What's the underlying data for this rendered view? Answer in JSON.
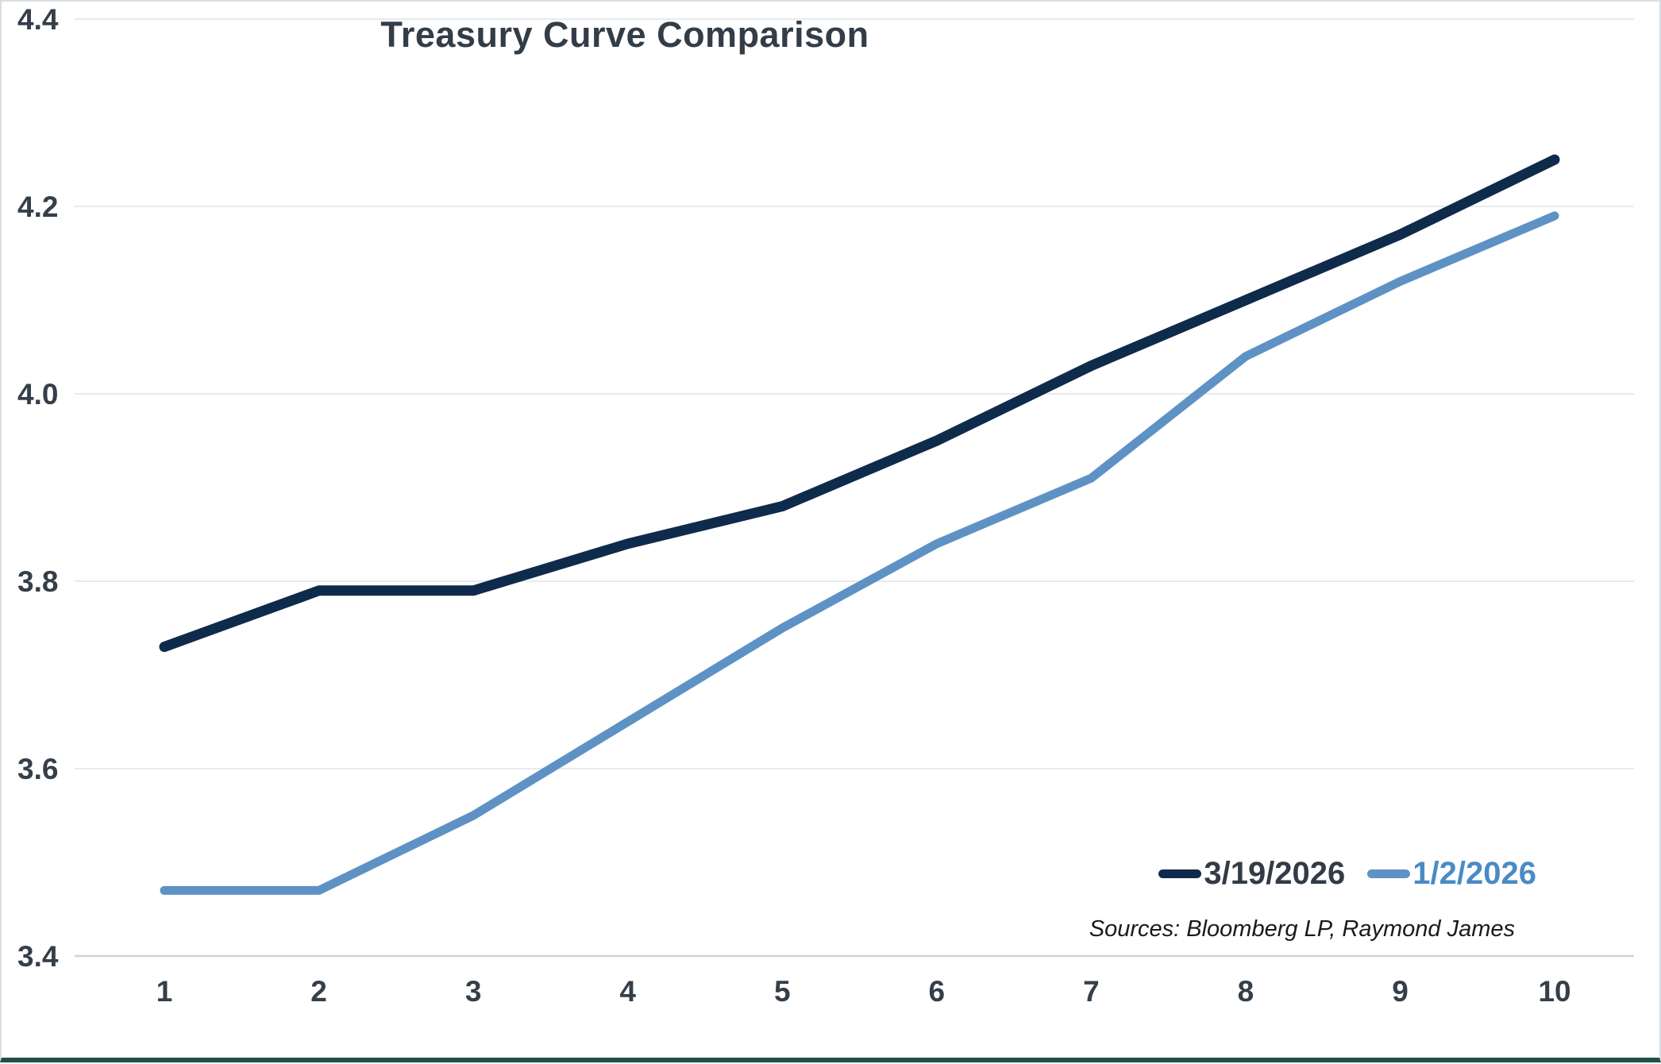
{
  "panel": {
    "title": "Treasury Curve Comparison",
    "sources": "Sources: Bloomberg LP, Raymond James"
  },
  "colors": {
    "title_text": "#333d47",
    "tick_text": "#353f4a",
    "gridline": "#e7ebef",
    "axis_line": "#ccd4d9",
    "panel_border": "#d9dee2",
    "panel_bottom_border": "#1f5048",
    "series_dark": "#0f2b4b",
    "series_blue": "#5e92c4"
  },
  "chart_data": {
    "type": "line",
    "title": "Treasury Curve Comparison",
    "xlabel": "",
    "ylabel": "",
    "x": [
      1,
      2,
      3,
      4,
      5,
      6,
      7,
      8,
      9,
      10
    ],
    "xtick_labels": [
      "1",
      "2",
      "3",
      "4",
      "5",
      "6",
      "7",
      "8",
      "9",
      "10"
    ],
    "series": [
      {
        "name": "3/19/2026",
        "color": "#0f2b4b",
        "label_color": "#333b46",
        "values": [
          3.73,
          3.79,
          3.79,
          3.84,
          3.88,
          3.95,
          4.03,
          4.1,
          4.17,
          4.25
        ]
      },
      {
        "name": "1/2/2026",
        "color": "#5e92c4",
        "label_color": "#4a8ac6",
        "values": [
          3.47,
          3.47,
          3.55,
          3.65,
          3.75,
          3.84,
          3.91,
          4.04,
          4.12,
          4.19
        ]
      }
    ],
    "ylim": [
      3.4,
      4.4
    ],
    "yticks": [
      "3.4",
      "3.6",
      "3.8",
      "4.0",
      "4.2",
      "4.4"
    ],
    "grid": true,
    "legend_position": "inside-bottom-right",
    "sources": "Sources: Bloomberg LP, Raymond James"
  }
}
